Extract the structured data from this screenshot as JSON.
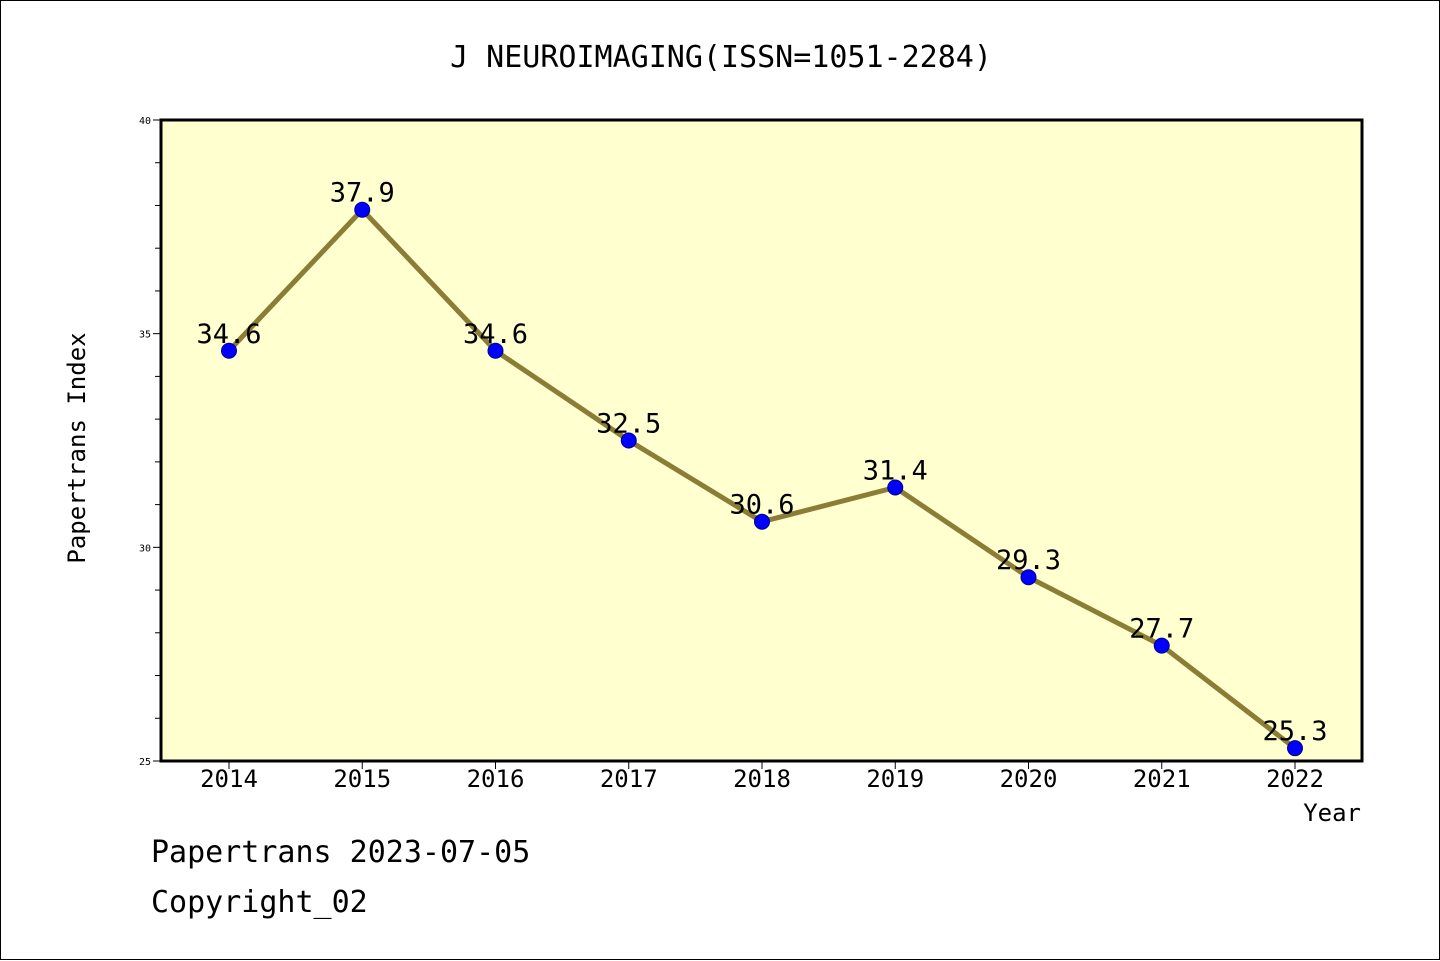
{
  "chart_data": {
    "type": "line",
    "title": "J NEUROIMAGING(ISSN=1051-2284)",
    "xlabel": "Year",
    "ylabel": "Papertrans Index",
    "categories": [
      "2014",
      "2015",
      "2016",
      "2017",
      "2018",
      "2019",
      "2020",
      "2021",
      "2022"
    ],
    "values": [
      34.6,
      37.9,
      34.6,
      32.5,
      30.6,
      31.4,
      29.3,
      27.7,
      25.3
    ],
    "data_labels": [
      "34.6",
      "37.9",
      "34.6",
      "32.5",
      "30.6",
      "31.4",
      "29.3",
      "27.7",
      "25.3"
    ],
    "ylim": [
      25,
      40
    ],
    "yticks": [
      25,
      30,
      35,
      40
    ],
    "ytick_labels": [
      "25",
      "30",
      "35",
      "40"
    ],
    "grid": false,
    "colors": {
      "plot_background": "#ffffd0",
      "line": "#8b7d35",
      "marker": "#0000ff",
      "axis": "#000000"
    }
  },
  "footer": {
    "line1": "Papertrans 2023-07-05",
    "line2": "Copyright_02"
  }
}
